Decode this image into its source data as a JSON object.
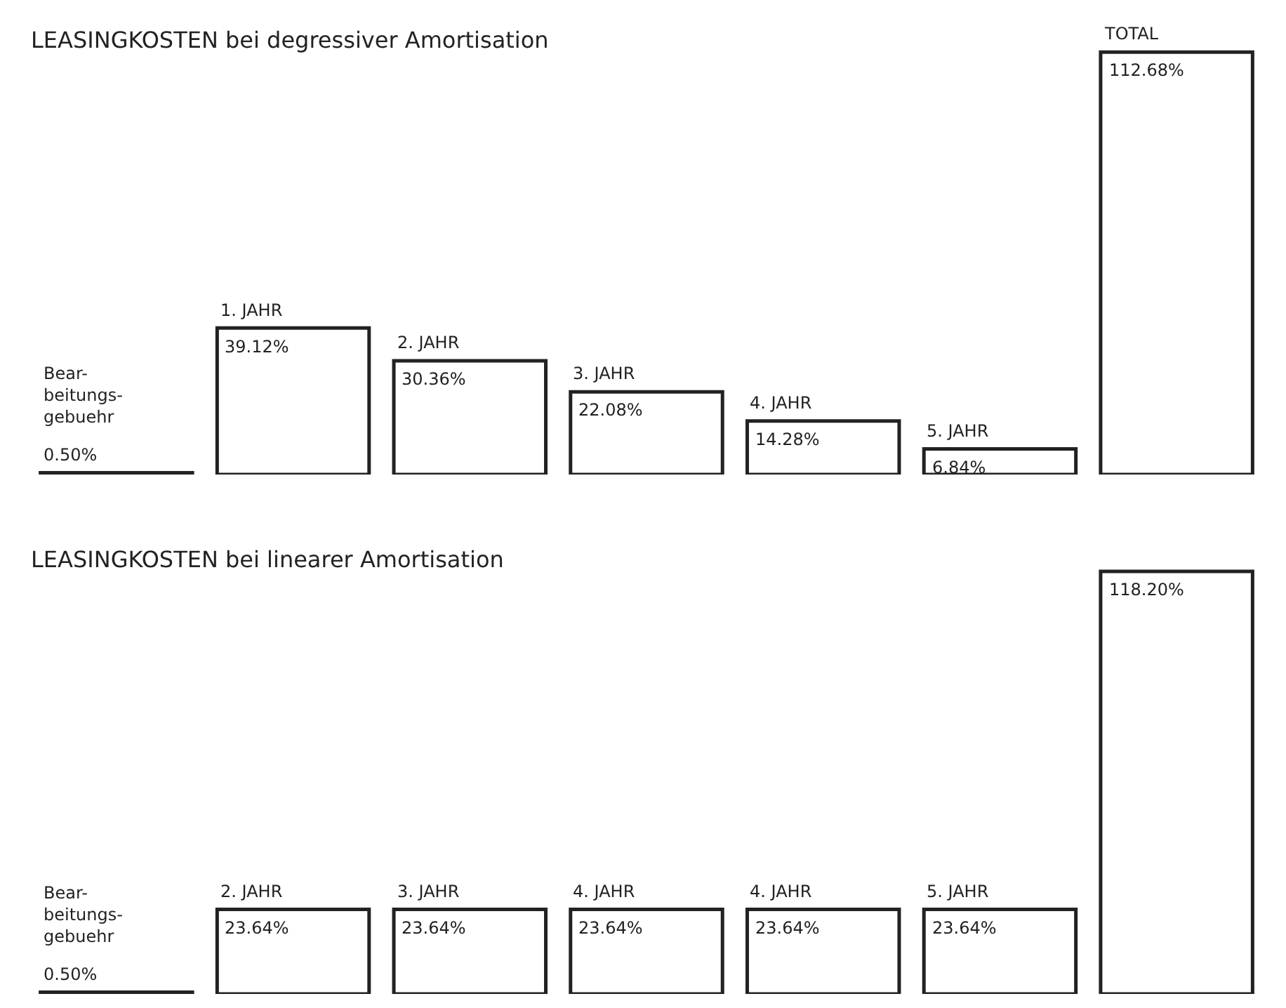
{
  "chart_data": [
    {
      "type": "bar",
      "title": "LEASINGKOSTEN bei degressiver Amortisation",
      "categories": [
        "Bear-\nbeitungs-\ngebuehr",
        "1. JAHR",
        "2. JAHR",
        "3. JAHR",
        "4. JAHR",
        "5. JAHR",
        "TOTAL"
      ],
      "values": [
        0.5,
        39.12,
        30.36,
        22.08,
        14.28,
        6.84,
        112.68
      ],
      "colors": [
        "#333333",
        "#ffffff",
        "#ffffff",
        "#ffffff",
        "#ffffff",
        "#ffffff",
        "#ffffff"
      ],
      "value_labels": [
        "0.50%",
        "39.12%",
        "30.36%",
        "22.08%",
        "14.28%",
        "6.84%",
        "112.68%"
      ]
    },
    {
      "type": "bar",
      "title": "LEASINGKOSTEN bei linearer Amortisation",
      "categories": [
        "Bear-\nbeitungs-\ngebuehr",
        "2. JAHR",
        "3. JAHR",
        "4. JAHR",
        "4. JAHR",
        "5. JAHR",
        null
      ],
      "values": [
        0.5,
        23.64,
        23.64,
        23.64,
        23.64,
        23.64,
        118.2
      ],
      "colors": [
        "#333333",
        "#ffffff",
        "#ffffff",
        "#ffffff",
        "#ffffff",
        "#ffffff",
        "#ffffff"
      ],
      "value_labels": [
        "0.50%",
        "23.64%",
        "23.64%",
        "23.64%",
        "23.64%",
        "23.64%",
        "118.20%"
      ]
    }
  ]
}
